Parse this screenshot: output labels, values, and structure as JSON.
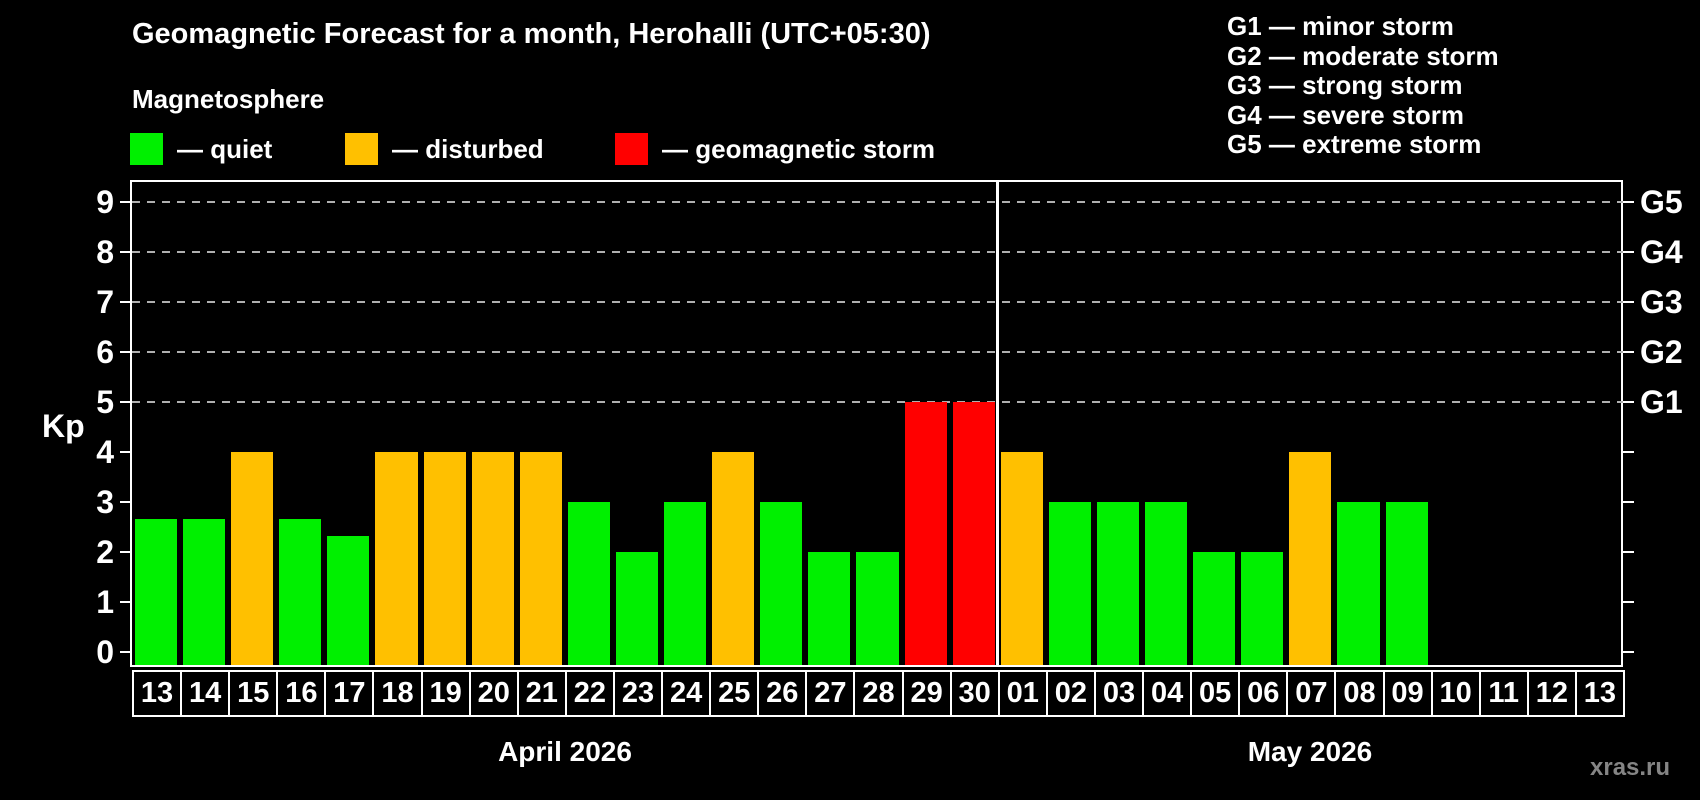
{
  "header": {
    "title": "Geomagnetic Forecast for a month, Herohalli (UTC+05:30)",
    "subtitle": "Magnetosphere"
  },
  "legend": {
    "items": [
      {
        "name": "quiet",
        "label": "— quiet",
        "color": "#00F000"
      },
      {
        "name": "disturbed",
        "label": "— disturbed",
        "color": "#FFC000"
      },
      {
        "name": "storm",
        "label": "— geomagnetic storm",
        "color": "#FF0000"
      }
    ]
  },
  "g_legend": {
    "items": [
      {
        "label": "G1 — minor storm"
      },
      {
        "label": "G2 — moderate storm"
      },
      {
        "label": "G3 — strong storm"
      },
      {
        "label": "G4 — severe storm"
      },
      {
        "label": "G5 — extreme storm"
      }
    ]
  },
  "axes": {
    "y_label": "Kp",
    "month_left": "April 2026",
    "month_right": "May 2026"
  },
  "footer": {
    "watermark": "xras.ru"
  },
  "chart_data": {
    "type": "bar",
    "title": "Geomagnetic Forecast for a month, Herohalli (UTC+05:30)",
    "ylabel": "Kp",
    "ylim": [
      0,
      9.7
    ],
    "yticks": [
      0,
      1,
      2,
      3,
      4,
      5,
      6,
      7,
      8,
      9
    ],
    "dashed_gridlines_at": [
      5,
      6,
      7,
      8,
      9
    ],
    "grid": "dashed horizontal at Kp 5-9 only",
    "legend_position": "top-left",
    "right_axis_labels": [
      {
        "label": "G1",
        "value": 5
      },
      {
        "label": "G2",
        "value": 6
      },
      {
        "label": "G3",
        "value": 7
      },
      {
        "label": "G4",
        "value": 8
      },
      {
        "label": "G5",
        "value": 9
      }
    ],
    "months": [
      {
        "label": "April 2026",
        "point_indices": "0-17"
      },
      {
        "label": "May 2026",
        "point_indices": "18-30"
      }
    ],
    "separator_after_index": 17,
    "points": [
      {
        "day": "13",
        "month": "April 2026",
        "kp": 2.67,
        "status": "quiet"
      },
      {
        "day": "14",
        "month": "April 2026",
        "kp": 2.67,
        "status": "quiet"
      },
      {
        "day": "15",
        "month": "April 2026",
        "kp": 4,
        "status": "disturbed"
      },
      {
        "day": "16",
        "month": "April 2026",
        "kp": 2.67,
        "status": "quiet"
      },
      {
        "day": "17",
        "month": "April 2026",
        "kp": 2.33,
        "status": "quiet"
      },
      {
        "day": "18",
        "month": "April 2026",
        "kp": 4,
        "status": "disturbed"
      },
      {
        "day": "19",
        "month": "April 2026",
        "kp": 4,
        "status": "disturbed"
      },
      {
        "day": "20",
        "month": "April 2026",
        "kp": 4,
        "status": "disturbed"
      },
      {
        "day": "21",
        "month": "April 2026",
        "kp": 4,
        "status": "disturbed"
      },
      {
        "day": "22",
        "month": "April 2026",
        "kp": 3,
        "status": "quiet"
      },
      {
        "day": "23",
        "month": "April 2026",
        "kp": 2,
        "status": "quiet"
      },
      {
        "day": "24",
        "month": "April 2026",
        "kp": 3,
        "status": "quiet"
      },
      {
        "day": "25",
        "month": "April 2026",
        "kp": 4,
        "status": "disturbed"
      },
      {
        "day": "26",
        "month": "April 2026",
        "kp": 3,
        "status": "quiet"
      },
      {
        "day": "27",
        "month": "April 2026",
        "kp": 2,
        "status": "quiet"
      },
      {
        "day": "28",
        "month": "April 2026",
        "kp": 2,
        "status": "quiet"
      },
      {
        "day": "29",
        "month": "April 2026",
        "kp": 5,
        "status": "storm"
      },
      {
        "day": "30",
        "month": "April 2026",
        "kp": 5,
        "status": "storm"
      },
      {
        "day": "01",
        "month": "May 2026",
        "kp": 4,
        "status": "disturbed"
      },
      {
        "day": "02",
        "month": "May 2026",
        "kp": 3,
        "status": "quiet"
      },
      {
        "day": "03",
        "month": "May 2026",
        "kp": 3,
        "status": "quiet"
      },
      {
        "day": "04",
        "month": "May 2026",
        "kp": 3,
        "status": "quiet"
      },
      {
        "day": "05",
        "month": "May 2026",
        "kp": 2,
        "status": "quiet"
      },
      {
        "day": "06",
        "month": "May 2026",
        "kp": 2,
        "status": "quiet"
      },
      {
        "day": "07",
        "month": "May 2026",
        "kp": 4,
        "status": "disturbed"
      },
      {
        "day": "08",
        "month": "May 2026",
        "kp": 3,
        "status": "quiet"
      },
      {
        "day": "09",
        "month": "May 2026",
        "kp": 3,
        "status": "quiet"
      },
      {
        "day": "10",
        "month": "May 2026",
        "kp": null,
        "status": null
      },
      {
        "day": "11",
        "month": "May 2026",
        "kp": null,
        "status": null
      },
      {
        "day": "12",
        "month": "May 2026",
        "kp": null,
        "status": null
      },
      {
        "day": "13",
        "month": "May 2026",
        "kp": null,
        "status": null
      }
    ]
  }
}
